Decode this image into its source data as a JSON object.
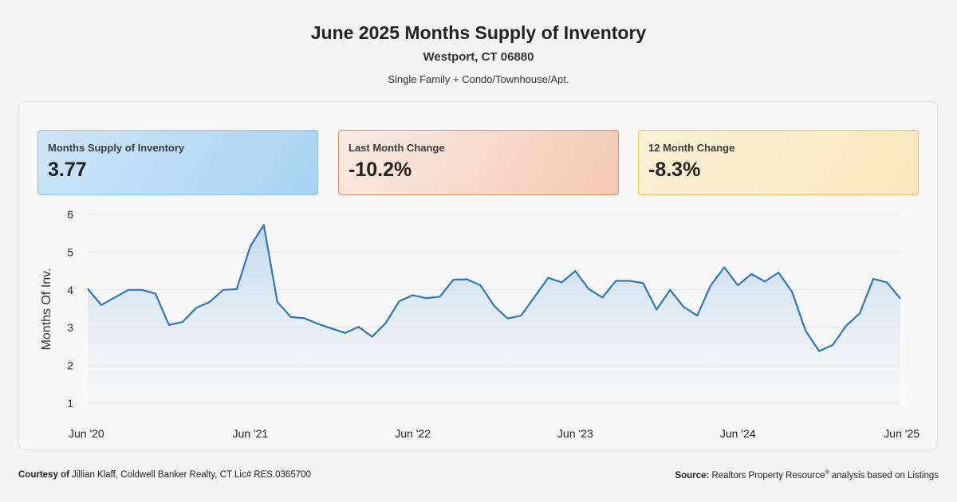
{
  "header": {
    "title": "June 2025 Months Supply of Inventory",
    "location": "Westport, CT 06880",
    "property_types": "Single Family + Condo/Townhouse/Apt."
  },
  "stats": {
    "supply": {
      "label": "Months Supply of Inventory",
      "value": "3.77"
    },
    "last_month": {
      "label": "Last Month Change",
      "value": "-10.2%"
    },
    "twelve_month": {
      "label": "12 Month Change",
      "value": "-8.3%"
    }
  },
  "footer": {
    "courtesy_label": "Courtesy of",
    "courtesy_text": "Jillian Klaff, Coldwell Banker Realty, CT Lic# RES.0365700",
    "source_label": "Source:",
    "source_text_1": "Realtors Property Resource",
    "source_sup": "®",
    "source_text_2": " analysis based on Listings"
  },
  "colors": {
    "line": "#2f78b5",
    "fill_top": "#b8d3ea",
    "fill_bottom": "#eef3f8",
    "grid": "#e2e2e2"
  },
  "chart_data": {
    "type": "area",
    "ylabel": "Months Of Inv.",
    "ylim": [
      1,
      6
    ],
    "yticks": [
      1,
      2,
      3,
      4,
      5,
      6
    ],
    "grid": true,
    "xtick_labels": [
      "Jun '20",
      "Jun '21",
      "Jun '22",
      "Jun '23",
      "Jun '24",
      "Jun '25"
    ],
    "series": [
      {
        "values": [
          4.03,
          3.6,
          3.8,
          4.0,
          4.0,
          3.9,
          3.07,
          3.15,
          3.52,
          3.68,
          4.0,
          4.02,
          5.15,
          5.72,
          3.68,
          3.28,
          3.25,
          3.1,
          2.98,
          2.86,
          3.02,
          2.76,
          3.12,
          3.7,
          3.86,
          3.78,
          3.82,
          4.27,
          4.28,
          4.12,
          3.58,
          3.24,
          3.32,
          3.82,
          4.32,
          4.2,
          4.5,
          4.02,
          3.8,
          4.24,
          4.24,
          4.18,
          3.48,
          4.0,
          3.55,
          3.32,
          4.12,
          4.6,
          4.12,
          4.42,
          4.22,
          4.46,
          3.95,
          2.92,
          2.38,
          2.54,
          3.05,
          3.38,
          4.29,
          4.2,
          3.77
        ]
      }
    ]
  }
}
